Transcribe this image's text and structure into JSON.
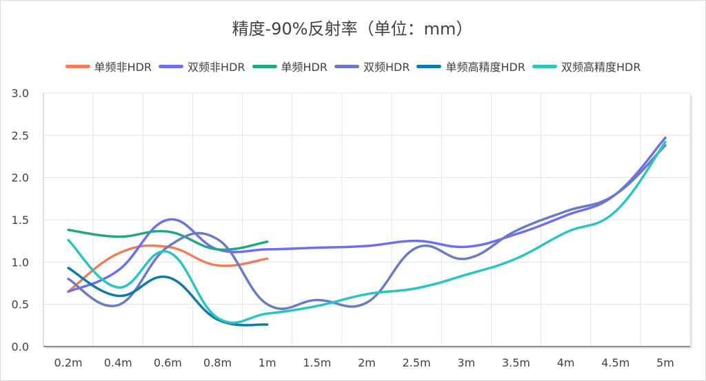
{
  "chart_data": {
    "type": "line",
    "title": "精度-90%反射率（单位：mm）",
    "xlabel": "",
    "ylabel": "",
    "categories": [
      "0.2m",
      "0.4m",
      "0.6m",
      "0.8m",
      "1m",
      "1.5m",
      "2m",
      "2.5m",
      "3m",
      "3.5m",
      "4m",
      "4.5m",
      "5m"
    ],
    "ylim": [
      0,
      3
    ],
    "yticks": [
      "0.0",
      "0.5",
      "1.0",
      "1.5",
      "2.0",
      "2.5",
      "3.0"
    ],
    "grid": true,
    "legend_position": "top",
    "series": [
      {
        "name": "单频非HDR",
        "color": "#ee7e5a",
        "values": [
          0.65,
          1.1,
          1.18,
          0.96,
          1.04,
          null,
          null,
          null,
          null,
          null,
          null,
          null,
          null
        ]
      },
      {
        "name": "双频非HDR",
        "color": "#6e6ef0",
        "values": [
          0.65,
          0.9,
          1.5,
          1.15,
          1.15,
          1.17,
          1.19,
          1.25,
          1.18,
          1.33,
          1.55,
          1.8,
          2.47
        ]
      },
      {
        "name": "单频HDR",
        "color": "#22a87c",
        "values": [
          1.38,
          1.3,
          1.36,
          1.15,
          1.24,
          null,
          null,
          null,
          null,
          null,
          null,
          null,
          null
        ]
      },
      {
        "name": "双频HDR",
        "color": "#6b7bbf",
        "values": [
          0.8,
          0.49,
          1.18,
          1.27,
          0.5,
          0.55,
          0.52,
          1.17,
          1.04,
          1.37,
          1.6,
          1.8,
          2.38
        ]
      },
      {
        "name": "单频高精度HDR",
        "color": "#0f7aa3",
        "values": [
          0.93,
          0.6,
          0.82,
          0.32,
          0.26,
          null,
          null,
          null,
          null,
          null,
          null,
          null,
          null
        ]
      },
      {
        "name": "双频高精度HDR",
        "color": "#2cc4c0",
        "values": [
          1.26,
          0.7,
          1.12,
          0.34,
          0.39,
          0.48,
          0.62,
          0.69,
          0.85,
          1.04,
          1.35,
          1.6,
          2.42
        ]
      }
    ]
  }
}
